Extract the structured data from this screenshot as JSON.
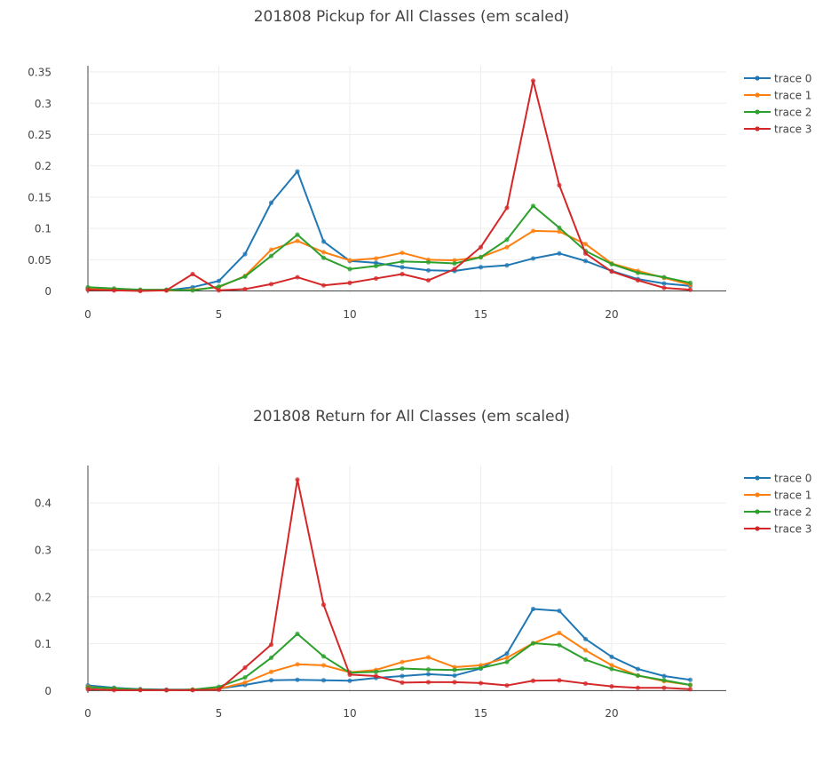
{
  "chart_data": [
    {
      "type": "line",
      "title": "201808 Pickup for All Classes (em scaled)",
      "xlabel": "",
      "ylabel": "",
      "xlim": [
        -0.5,
        24.5
      ],
      "ylim": [
        -0.0035,
        0.36
      ],
      "xticks": [
        0,
        5,
        10,
        15,
        20
      ],
      "yticks": [
        0,
        0.05,
        0.1,
        0.15,
        0.2,
        0.25,
        0.3,
        0.35
      ],
      "ytick_labels": [
        "0",
        "0.05",
        "0.1",
        "0.15",
        "0.2",
        "0.25",
        "0.3",
        "0.35"
      ],
      "grid": true,
      "legend": "top-right",
      "x": [
        0,
        1,
        2,
        3,
        4,
        5,
        6,
        7,
        8,
        9,
        10,
        11,
        12,
        13,
        14,
        15,
        16,
        17,
        18,
        19,
        20,
        21,
        22,
        23
      ],
      "series": [
        {
          "name": "trace 0",
          "color": "#1f77b4",
          "values": [
            0.004,
            0.002,
            0.001,
            0.001,
            0.006,
            0.016,
            0.059,
            0.141,
            0.191,
            0.079,
            0.048,
            0.045,
            0.038,
            0.033,
            0.032,
            0.038,
            0.041,
            0.052,
            0.06,
            0.048,
            0.032,
            0.019,
            0.012,
            0.008
          ]
        },
        {
          "name": "trace 1",
          "color": "#ff7f0e",
          "values": [
            0.003,
            0.002,
            0.001,
            0.001,
            0.002,
            0.006,
            0.024,
            0.066,
            0.08,
            0.062,
            0.049,
            0.052,
            0.061,
            0.05,
            0.049,
            0.054,
            0.07,
            0.096,
            0.095,
            0.075,
            0.044,
            0.032,
            0.021,
            0.01
          ]
        },
        {
          "name": "trace 2",
          "color": "#2ca02c",
          "values": [
            0.006,
            0.004,
            0.002,
            0.002,
            0.001,
            0.007,
            0.023,
            0.056,
            0.09,
            0.053,
            0.035,
            0.04,
            0.047,
            0.046,
            0.044,
            0.054,
            0.082,
            0.136,
            0.101,
            0.064,
            0.043,
            0.029,
            0.022,
            0.013
          ]
        },
        {
          "name": "trace 3",
          "color": "#d62728",
          "values": [
            0.002,
            0.001,
            0.0,
            0.001,
            0.027,
            0.001,
            0.003,
            0.011,
            0.022,
            0.009,
            0.013,
            0.02,
            0.027,
            0.017,
            0.035,
            0.07,
            0.133,
            0.336,
            0.169,
            0.06,
            0.031,
            0.017,
            0.005,
            0.002
          ]
        }
      ]
    },
    {
      "type": "line",
      "title": "201808 Return for All Classes (em scaled)",
      "xlabel": "",
      "ylabel": "",
      "xlim": [
        -0.5,
        24.5
      ],
      "ylim": [
        -0.005,
        0.48
      ],
      "xticks": [
        0,
        5,
        10,
        15,
        20
      ],
      "yticks": [
        0,
        0.1,
        0.2,
        0.3,
        0.4
      ],
      "ytick_labels": [
        "0",
        "0.1",
        "0.2",
        "0.3",
        "0.4"
      ],
      "grid": true,
      "legend": "top-right",
      "x": [
        0,
        1,
        2,
        3,
        4,
        5,
        6,
        7,
        8,
        9,
        10,
        11,
        12,
        13,
        14,
        15,
        16,
        17,
        18,
        19,
        20,
        21,
        22,
        23
      ],
      "series": [
        {
          "name": "trace 0",
          "color": "#1f77b4",
          "values": [
            0.011,
            0.006,
            0.003,
            0.002,
            0.002,
            0.004,
            0.012,
            0.022,
            0.023,
            0.022,
            0.021,
            0.027,
            0.031,
            0.035,
            0.032,
            0.047,
            0.079,
            0.174,
            0.17,
            0.11,
            0.072,
            0.046,
            0.031,
            0.023
          ]
        },
        {
          "name": "trace 1",
          "color": "#ff7f0e",
          "values": [
            0.008,
            0.004,
            0.002,
            0.001,
            0.002,
            0.004,
            0.017,
            0.04,
            0.056,
            0.054,
            0.039,
            0.044,
            0.061,
            0.071,
            0.05,
            0.054,
            0.07,
            0.101,
            0.123,
            0.086,
            0.054,
            0.032,
            0.02,
            0.012
          ]
        },
        {
          "name": "trace 2",
          "color": "#2ca02c",
          "values": [
            0.007,
            0.005,
            0.002,
            0.001,
            0.002,
            0.008,
            0.028,
            0.07,
            0.121,
            0.073,
            0.038,
            0.04,
            0.047,
            0.045,
            0.044,
            0.048,
            0.061,
            0.101,
            0.097,
            0.066,
            0.046,
            0.032,
            0.022,
            0.012
          ]
        },
        {
          "name": "trace 3",
          "color": "#d62728",
          "values": [
            0.003,
            0.001,
            0.001,
            0.001,
            0.001,
            0.002,
            0.049,
            0.098,
            0.45,
            0.183,
            0.034,
            0.031,
            0.017,
            0.018,
            0.018,
            0.016,
            0.011,
            0.021,
            0.022,
            0.015,
            0.009,
            0.006,
            0.006,
            0.003
          ]
        }
      ]
    }
  ]
}
